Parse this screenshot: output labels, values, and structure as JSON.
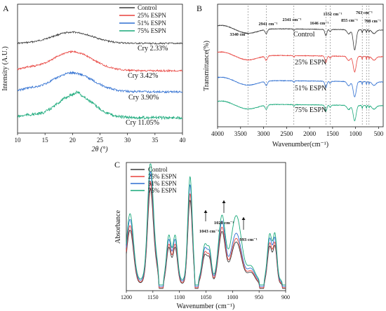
{
  "colors": {
    "control": "#3a3a3a",
    "s25": "#e8413c",
    "s51": "#2f6fd1",
    "s75": "#19a97a",
    "guide": "#777777",
    "axis": "#111111"
  },
  "chart_data": [
    {
      "type": "line",
      "panel": "A",
      "xlabel": "2θ (°)",
      "ylabel": "Intensity (A.U.)",
      "xlim": [
        10,
        40
      ],
      "xticks": [
        10,
        15,
        20,
        25,
        30,
        35,
        40
      ],
      "series": [
        {
          "name": "Control",
          "peak_x": 20,
          "crystallinity": "Cry 2.33%"
        },
        {
          "name": "25% ESPN",
          "peak_x": 20,
          "crystallinity": "Cry 3.42%"
        },
        {
          "name": "51% ESPN",
          "peak_x": 20,
          "crystallinity": "Cry 3.90%"
        },
        {
          "name": "75% ESPN",
          "peak_x": 20.5,
          "crystallinity": "Cry 11.05%"
        }
      ],
      "grid": false,
      "legend": "top-right"
    },
    {
      "type": "line",
      "panel": "B",
      "xlabel": "Wavenumber(cm⁻¹)",
      "ylabel": "Transmittance(%)",
      "xlim": [
        4000,
        400
      ],
      "xticks": [
        4000,
        3500,
        3000,
        2500,
        2000,
        1500,
        1000,
        500
      ],
      "series": [
        {
          "name": "Control"
        },
        {
          "name": "25% ESPN"
        },
        {
          "name": "51% ESPN"
        },
        {
          "name": "75% ESPN"
        }
      ],
      "guides": [
        3340,
        2941,
        2341,
        1646,
        1552,
        855,
        763,
        708
      ],
      "annotations": [
        "3340 cm⁻¹",
        "2941 cm⁻¹",
        "2341 cm⁻¹",
        "1646 cm⁻¹",
        "1552 cm⁻¹",
        "855 cm⁻¹",
        "763 cm⁻¹",
        "708 cm⁻¹"
      ],
      "grid": false
    },
    {
      "type": "line",
      "panel": "C",
      "xlabel": "Wavenumber (cm⁻¹)",
      "ylabel": "Absorbance",
      "xlim": [
        1200,
        900
      ],
      "xticks": [
        1200,
        1150,
        1100,
        1050,
        1000,
        950,
        900
      ],
      "series": [
        {
          "name": "Control"
        },
        {
          "name": "25% ESPN"
        },
        {
          "name": "51% ESPN"
        },
        {
          "name": "75% ESPN"
        }
      ],
      "annotations": [
        "1043 cm⁻¹",
        "1020 cm⁻¹",
        "993 cm⁻¹"
      ],
      "grid": false,
      "legend": "top-left"
    }
  ]
}
